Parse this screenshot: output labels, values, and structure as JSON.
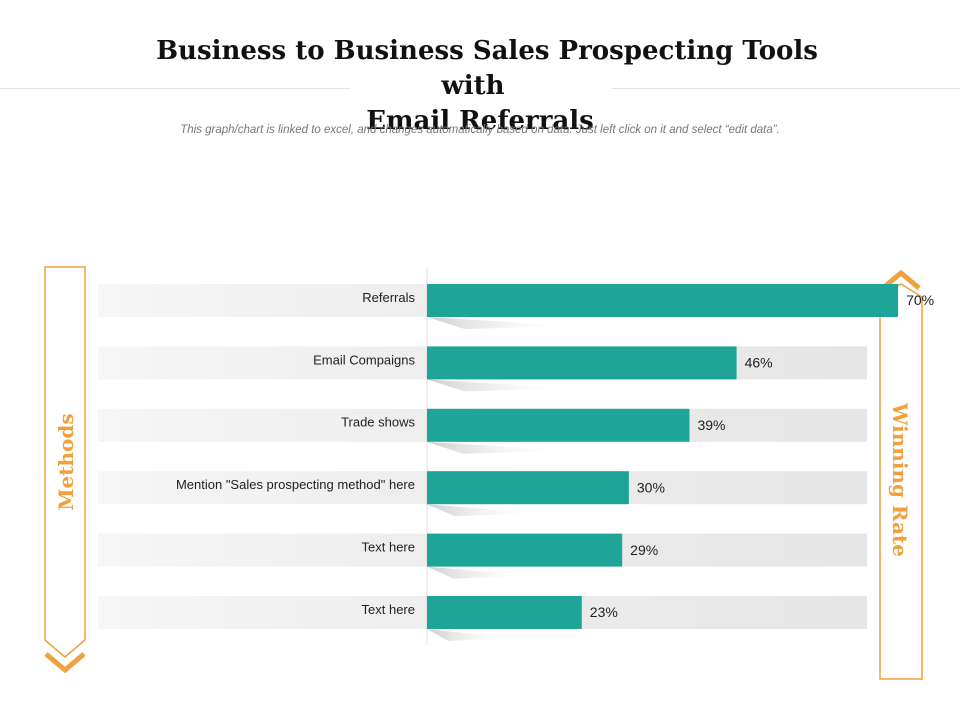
{
  "page": {
    "title_line1": "Business to Business Sales Prospecting Tools with",
    "title_line2": "Email Referrals",
    "subtitle": "This graph/chart is linked to excel, and changes automatically based on data. Just left click on it and select “edit data”."
  },
  "side_labels": {
    "left": "Methods",
    "right": "Winning Rate"
  },
  "colors": {
    "bar": "#1fa597",
    "accent": "#f0a03c",
    "track": "#ebebeb",
    "label_text": "#222222"
  },
  "chart_data": {
    "type": "bar",
    "orientation": "horizontal",
    "categories": [
      "Referrals",
      "Email Compaigns",
      "Trade shows",
      "Mention \"Sales prospecting method\" here",
      "Text here",
      "Text here"
    ],
    "values": [
      70,
      46,
      39,
      30,
      29,
      23
    ],
    "value_labels": [
      "70%",
      "46%",
      "39%",
      "30%",
      "29%",
      "23%"
    ],
    "unit": "%",
    "xlim": [
      0,
      100
    ],
    "grid": false,
    "legend": "none"
  }
}
